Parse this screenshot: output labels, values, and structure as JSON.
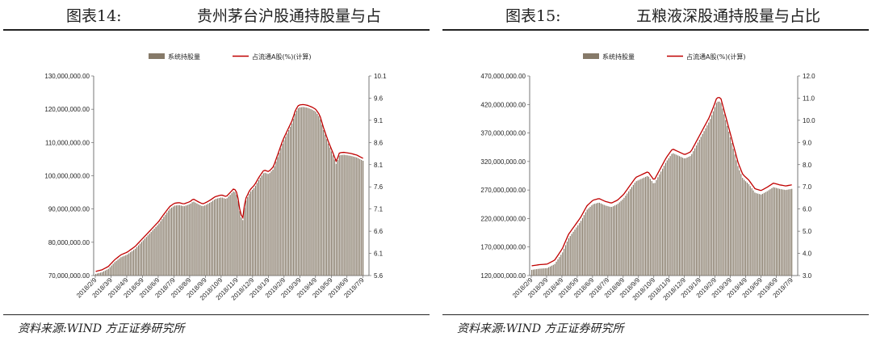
{
  "panels": [
    {
      "fig_no": "图表14:",
      "title": "贵州茅台沪股通持股量与占",
      "source": "资料来源:WIND 方正证券研究所",
      "chart_data": {
        "type": "bar+line",
        "legend": {
          "bar": "系统持股量",
          "line": "占流通A股(%)(计算)"
        },
        "y_left": {
          "min": 70000000,
          "max": 130000000,
          "step": 10000000,
          "ticks": [
            "70,000,000.00",
            "80,000,000.00",
            "90,000,000.00",
            "100,000,000.00",
            "110,000,000.00",
            "120,000,000.00",
            "130,000,000.00"
          ]
        },
        "y_right": {
          "min": 5.6,
          "max": 10.1,
          "ticks": [
            "5.6",
            "6.1",
            "6.6",
            "7.1",
            "7.6",
            "8.1",
            "8.6",
            "9.1",
            "9.6",
            "10.1"
          ]
        },
        "x_labels": [
          "2018/2/9",
          "2018/3/9",
          "2018/4/9",
          "2018/5/9",
          "2018/6/9",
          "2018/7/9",
          "2018/8/9",
          "2018/9/9",
          "2018/10/9",
          "2018/11/9",
          "2018/12/9",
          "2019/1/9",
          "2019/2/9",
          "2019/3/9",
          "2019/4/9",
          "2019/5/9",
          "2019/6/9",
          "2019/7/9"
        ],
        "series_keypoints": [
          [
            0,
            70.5
          ],
          [
            0.4,
            71
          ],
          [
            0.8,
            72
          ],
          [
            1.2,
            74
          ],
          [
            1.6,
            75.5
          ],
          [
            2,
            76.3
          ],
          [
            2.5,
            78
          ],
          [
            3,
            80.5
          ],
          [
            3.5,
            83
          ],
          [
            4,
            85.5
          ],
          [
            4.3,
            87.5
          ],
          [
            4.7,
            90
          ],
          [
            5,
            91
          ],
          [
            5.3,
            91.2
          ],
          [
            5.6,
            90.8
          ],
          [
            6,
            91.5
          ],
          [
            6.2,
            92.3
          ],
          [
            6.5,
            91.5
          ],
          [
            6.8,
            90.8
          ],
          [
            7,
            91.2
          ],
          [
            7.3,
            92
          ],
          [
            7.6,
            93
          ],
          [
            8,
            93.5
          ],
          [
            8.3,
            93
          ],
          [
            8.6,
            94.5
          ],
          [
            8.8,
            95.5
          ],
          [
            9,
            94
          ],
          [
            9.2,
            88
          ],
          [
            9.35,
            86.5
          ],
          [
            9.5,
            92
          ],
          [
            9.8,
            95
          ],
          [
            10.1,
            96.5
          ],
          [
            10.4,
            99
          ],
          [
            10.7,
            101
          ],
          [
            11,
            100.5
          ],
          [
            11.3,
            102
          ],
          [
            11.6,
            106
          ],
          [
            11.9,
            110
          ],
          [
            12.2,
            113
          ],
          [
            12.5,
            116
          ],
          [
            12.7,
            119
          ],
          [
            12.9,
            120.5
          ],
          [
            13.2,
            120.7
          ],
          [
            13.5,
            120.4
          ],
          [
            13.8,
            119.8
          ],
          [
            14,
            119.2
          ],
          [
            14.25,
            117.5
          ],
          [
            14.5,
            113.5
          ],
          [
            14.8,
            109.5
          ],
          [
            15.1,
            106
          ],
          [
            15.3,
            103.5
          ],
          [
            15.5,
            106.2
          ],
          [
            15.8,
            106.3
          ],
          [
            16.2,
            106
          ],
          [
            16.6,
            105.5
          ],
          [
            17,
            104.5
          ]
        ],
        "series_unit_note": "values in millions of shares"
      }
    },
    {
      "fig_no": "图表15:",
      "title": "五粮液深股通持股量与占比",
      "source": "资料来源:WIND 方正证券研究所",
      "chart_data": {
        "type": "bar+line",
        "legend": {
          "bar": "系统持股量",
          "line": "占流通A股(%)(计算)"
        },
        "y_left": {
          "min": 120000000,
          "max": 470000000,
          "step": 50000000,
          "ticks": [
            "120,000,000.00",
            "170,000,000.00",
            "220,000,000.00",
            "270,000,000.00",
            "320,000,000.00",
            "370,000,000.00",
            "420,000,000.00",
            "470,000,000.00"
          ]
        },
        "y_right": {
          "min": 3.0,
          "max": 12.0,
          "ticks": [
            "3.0",
            "4.0",
            "5.0",
            "6.0",
            "7.0",
            "8.0",
            "9.0",
            "10.0",
            "11.0",
            "12.0"
          ]
        },
        "x_labels": [
          "2018/2/9",
          "2018/3/9",
          "2018/4/9",
          "2018/5/9",
          "2018/6/9",
          "2018/7/9",
          "2018/8/9",
          "2018/9/9",
          "2018/10/9",
          "2018/11/9",
          "2018/12/9",
          "2019/1/9",
          "2019/2/9",
          "2019/3/9",
          "2019/4/9",
          "2019/5/9",
          "2019/6/9",
          "2019/7/9"
        ],
        "series_keypoints": [
          [
            0,
            130
          ],
          [
            0.5,
            132
          ],
          [
            1,
            133
          ],
          [
            1.5,
            140
          ],
          [
            2,
            160
          ],
          [
            2.4,
            185
          ],
          [
            2.8,
            200
          ],
          [
            3.2,
            215
          ],
          [
            3.6,
            235
          ],
          [
            4,
            245
          ],
          [
            4.4,
            248
          ],
          [
            4.8,
            243
          ],
          [
            5.2,
            240
          ],
          [
            5.6,
            245
          ],
          [
            6,
            255
          ],
          [
            6.4,
            270
          ],
          [
            6.8,
            285
          ],
          [
            7.2,
            290
          ],
          [
            7.6,
            295
          ],
          [
            8,
            280
          ],
          [
            8.4,
            300
          ],
          [
            8.8,
            320
          ],
          [
            9.2,
            335
          ],
          [
            9.6,
            330
          ],
          [
            10,
            325
          ],
          [
            10.4,
            330
          ],
          [
            10.8,
            350
          ],
          [
            11.2,
            370
          ],
          [
            11.6,
            390
          ],
          [
            11.9,
            410
          ],
          [
            12.1,
            425
          ],
          [
            12.35,
            425
          ],
          [
            12.6,
            400
          ],
          [
            12.9,
            370
          ],
          [
            13.2,
            340
          ],
          [
            13.5,
            310
          ],
          [
            13.8,
            290
          ],
          [
            14.2,
            280
          ],
          [
            14.6,
            265
          ],
          [
            15,
            262
          ],
          [
            15.4,
            268
          ],
          [
            15.8,
            275
          ],
          [
            16.2,
            272
          ],
          [
            16.6,
            270
          ],
          [
            17,
            272
          ]
        ],
        "series_unit_note": "values in millions of shares"
      }
    }
  ],
  "colors": {
    "bar": "#867a69",
    "bar_highlight": "#e8e4dc",
    "line": "#c00000",
    "axis": "#555555"
  }
}
